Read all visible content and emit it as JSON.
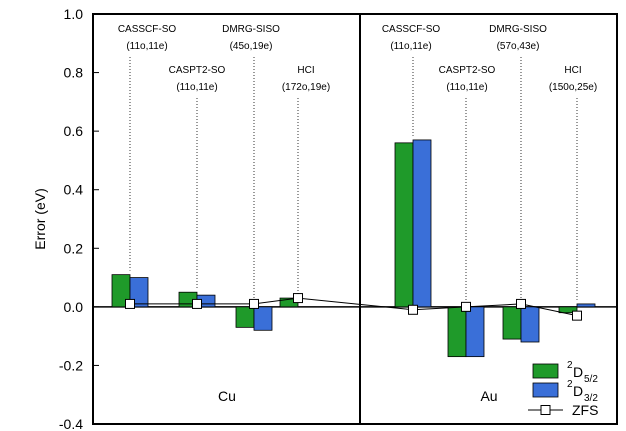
{
  "chart_data": {
    "type": "bar",
    "ylabel": "Error (eV)",
    "ylim": [
      -0.4,
      1.0
    ],
    "yticks": [
      "1.0",
      "0.8",
      "0.6",
      "0.4",
      "0.2",
      "0.0",
      "-0.2",
      "-0.4"
    ],
    "grid": false,
    "legend_position": "bottom-right",
    "legend": [
      {
        "key": "d52",
        "base": "D",
        "sup": "2",
        "sub": "5/2",
        "color": "#1f9a2a"
      },
      {
        "key": "d32",
        "base": "D",
        "sup": "2",
        "sub": "3/2",
        "color": "#3a6fd8"
      },
      {
        "key": "zfs",
        "label": "ZFS",
        "marker": "open-square"
      }
    ],
    "panels": [
      {
        "label": "Cu",
        "methods": [
          {
            "name": "CASSCF-SO",
            "active_space": "(11o,11e)",
            "d52": 0.11,
            "d32": 0.1,
            "zfs": 0.01
          },
          {
            "name": "CASPT2-SO",
            "active_space": "(11o,11e)",
            "d52": 0.05,
            "d32": 0.04,
            "zfs": 0.01
          },
          {
            "name": "DMRG-SISO",
            "active_space": "(45o,19e)",
            "d52": -0.07,
            "d32": -0.08,
            "zfs": 0.01
          },
          {
            "name": "HCI",
            "active_space": "(172o,19e)",
            "d52": 0.03,
            "d32": 0.0,
            "zfs": 0.03
          }
        ]
      },
      {
        "label": "Au",
        "methods": [
          {
            "name": "CASSCF-SO",
            "active_space": "(11o,11e)",
            "d52": 0.56,
            "d32": 0.57,
            "zfs": -0.01
          },
          {
            "name": "CASPT2-SO",
            "active_space": "(11o,11e)",
            "d52": -0.17,
            "d32": -0.17,
            "zfs": 0.0
          },
          {
            "name": "DMRG-SISO",
            "active_space": "(57o,43e)",
            "d52": -0.11,
            "d32": -0.12,
            "zfs": 0.01
          },
          {
            "name": "HCI",
            "active_space": "(150o,25e)",
            "d52": -0.02,
            "d32": 0.01,
            "zfs": -0.03
          }
        ]
      }
    ]
  }
}
